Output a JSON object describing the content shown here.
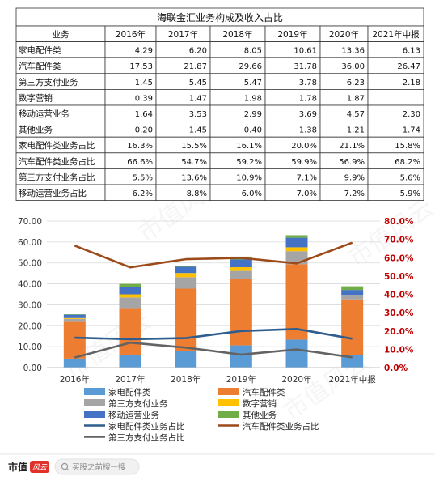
{
  "chart_data": [
    {
      "type": "table",
      "title": "海联金汇业务构成及收入占比",
      "columns": [
        "业务",
        "2016年",
        "2017年",
        "2018年",
        "2019年",
        "2020年",
        "2021年中报"
      ],
      "rows": [
        [
          "家电配件类",
          "4.29",
          "6.20",
          "8.05",
          "10.61",
          "13.36",
          "6.13"
        ],
        [
          "汽车配件类",
          "17.53",
          "21.87",
          "29.66",
          "31.78",
          "36.00",
          "26.47"
        ],
        [
          "第三方支付业务",
          "1.45",
          "5.45",
          "5.47",
          "3.78",
          "6.23",
          "2.18"
        ],
        [
          "数字营销",
          "0.39",
          "1.47",
          "1.98",
          "1.78",
          "1.87",
          ""
        ],
        [
          "移动运营业务",
          "1.64",
          "3.53",
          "2.99",
          "3.69",
          "4.57",
          "2.30"
        ],
        [
          "其他业务",
          "0.20",
          "1.45",
          "0.40",
          "1.38",
          "1.21",
          "1.74"
        ],
        [
          "家电配件类业务占比",
          "16.3%",
          "15.5%",
          "16.1%",
          "20.0%",
          "21.1%",
          "15.8%"
        ],
        [
          "汽车配件类业务占比",
          "66.6%",
          "54.7%",
          "59.2%",
          "59.9%",
          "56.9%",
          "68.2%"
        ],
        [
          "第三方支付业务占比",
          "5.5%",
          "13.6%",
          "10.9%",
          "7.1%",
          "9.9%",
          "5.6%"
        ],
        [
          "移动运营业务占比",
          "6.2%",
          "8.8%",
          "6.0%",
          "7.0%",
          "7.2%",
          "5.9%"
        ]
      ]
    },
    {
      "type": "bar",
      "stacked": true,
      "categories": [
        "2016年",
        "2017年",
        "2018年",
        "2019年",
        "2020年",
        "2021年中报"
      ],
      "ylim": [
        0,
        70
      ],
      "yticks": [
        "0.00",
        "10.00",
        "20.00",
        "30.00",
        "40.00",
        "50.00",
        "60.00",
        "70.00"
      ],
      "y2lim": [
        0,
        80
      ],
      "y2ticks": [
        "0.0%",
        "10.0%",
        "20.0%",
        "30.0%",
        "40.0%",
        "50.0%",
        "60.0%",
        "70.0%",
        "80.0%"
      ],
      "grid": true,
      "series": [
        {
          "name": "家电配件类",
          "color": "#5b9bd5",
          "values": [
            4.29,
            6.2,
            8.05,
            10.61,
            13.36,
            6.13
          ]
        },
        {
          "name": "汽车配件类",
          "color": "#ed7d31",
          "values": [
            17.53,
            21.87,
            29.66,
            31.78,
            36.0,
            26.47
          ]
        },
        {
          "name": "第三方支付业务",
          "color": "#a5a5a5",
          "values": [
            1.45,
            5.45,
            5.47,
            3.78,
            6.23,
            2.18
          ]
        },
        {
          "name": "数字营销",
          "color": "#ffc000",
          "values": [
            0.39,
            1.47,
            1.98,
            1.78,
            1.87,
            0
          ]
        },
        {
          "name": "移动运营业务",
          "color": "#4472c4",
          "values": [
            1.64,
            3.53,
            2.99,
            3.69,
            4.57,
            2.3
          ]
        },
        {
          "name": "其他业务",
          "color": "#70ad47",
          "values": [
            0.2,
            1.45,
            0.4,
            1.38,
            1.21,
            1.74
          ]
        }
      ],
      "line_series": [
        {
          "name": "家电配件类业务占比",
          "color": "#2e5d8e",
          "values": [
            16.3,
            15.5,
            16.1,
            20.0,
            21.1,
            15.8
          ]
        },
        {
          "name": "汽车配件类业务占比",
          "color": "#9c4a1a",
          "values": [
            66.6,
            54.7,
            59.2,
            59.9,
            56.9,
            68.2
          ]
        },
        {
          "name": "第三方支付业务占比",
          "color": "#636363",
          "values": [
            5.5,
            13.6,
            10.9,
            7.1,
            9.9,
            5.6
          ]
        }
      ]
    }
  ],
  "footer": {
    "brand": "市值",
    "brand_badge": "风云",
    "search_placeholder": "买股之前搜一搜"
  },
  "watermark": "市值风云"
}
